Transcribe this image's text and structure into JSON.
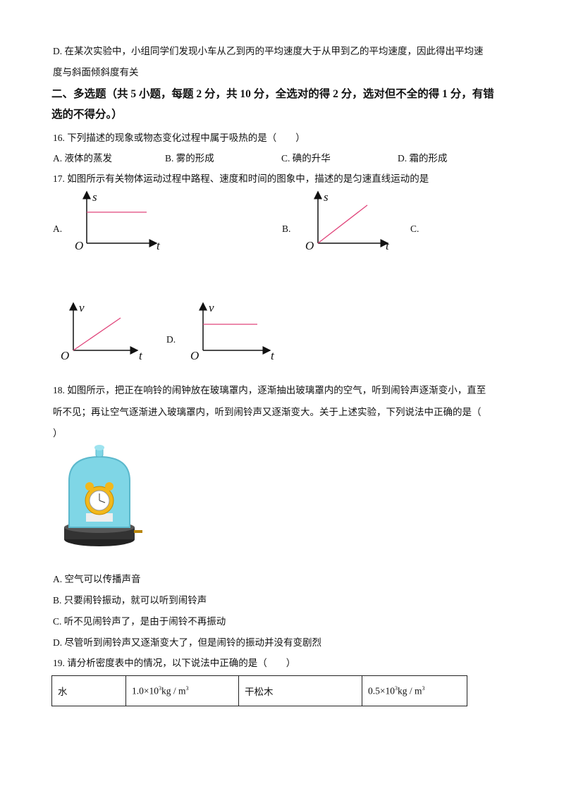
{
  "q15": {
    "option_d_line1": "D. 在某次实验中，小组同学们发现小车从乙到丙的平均速度大于从甲到乙的平均速度，因此得出平均速",
    "option_d_line2": "度与斜面倾斜度有关"
  },
  "section2": {
    "heading_line1": "二、多选题（共 5 小题，每题 2 分，共 10 分，全选对的得 2 分，选对但不全的得 1 分，有错",
    "heading_line2": "选的不得分。）"
  },
  "q16": {
    "stem": "16. 下列描述的现象或物态变化过程中属于吸热的是（　　）",
    "options": [
      "A. 液体的蒸发",
      "B. 雾的形成",
      "C. 碘的升华",
      "D. 霜的形成"
    ]
  },
  "q17": {
    "stem": "17. 如图所示有关物体运动过程中路程、速度和时间的图象中，描述的是匀速直线运动的是",
    "labels": [
      "A.",
      "B.",
      "C.",
      "D."
    ],
    "graphs": [
      {
        "y_axis": "s",
        "x_axis": "t",
        "origin": "O",
        "shape": "horizontal"
      },
      {
        "y_axis": "s",
        "x_axis": "t",
        "origin": "O",
        "shape": "rising"
      },
      {
        "y_axis": "v",
        "x_axis": "t",
        "origin": "O",
        "shape": "rising"
      },
      {
        "y_axis": "v",
        "x_axis": "t",
        "origin": "O",
        "shape": "horizontal"
      }
    ],
    "line_color": "#e0457b"
  },
  "q18": {
    "stem_line1": "18. 如图所示，把正在响铃的闹钟放在玻璃罩内，逐渐抽出玻璃罩内的空气，听到闹铃声逐渐变小，直至",
    "stem_line2": "听不见；再让空气逐渐进入玻璃罩内，听到闹铃声又逐渐变大。关于上述实验，下列说法中正确的是（",
    "stem_line3": "）",
    "options": [
      "A. 空气可以传播声音",
      "B. 只要闹铃振动，就可以听到闹铃声",
      "C. 听不见闹铃声了，是由于闹铃不再振动",
      "D. 尽管听到闹铃声又逐渐变大了，但是闹铃的振动并没有变剧烈"
    ]
  },
  "q19": {
    "stem": "19. 请分析密度表中的情况，以下说法中正确的是（　　）",
    "table": [
      {
        "name": "水",
        "mantissa": "1.0×10",
        "exp": "3",
        "unit": "kg / m",
        "unit_exp": "3"
      },
      {
        "name": "干松木",
        "mantissa": "0.5×10",
        "exp": "3",
        "unit": "kg / m",
        "unit_exp": "3"
      }
    ]
  }
}
